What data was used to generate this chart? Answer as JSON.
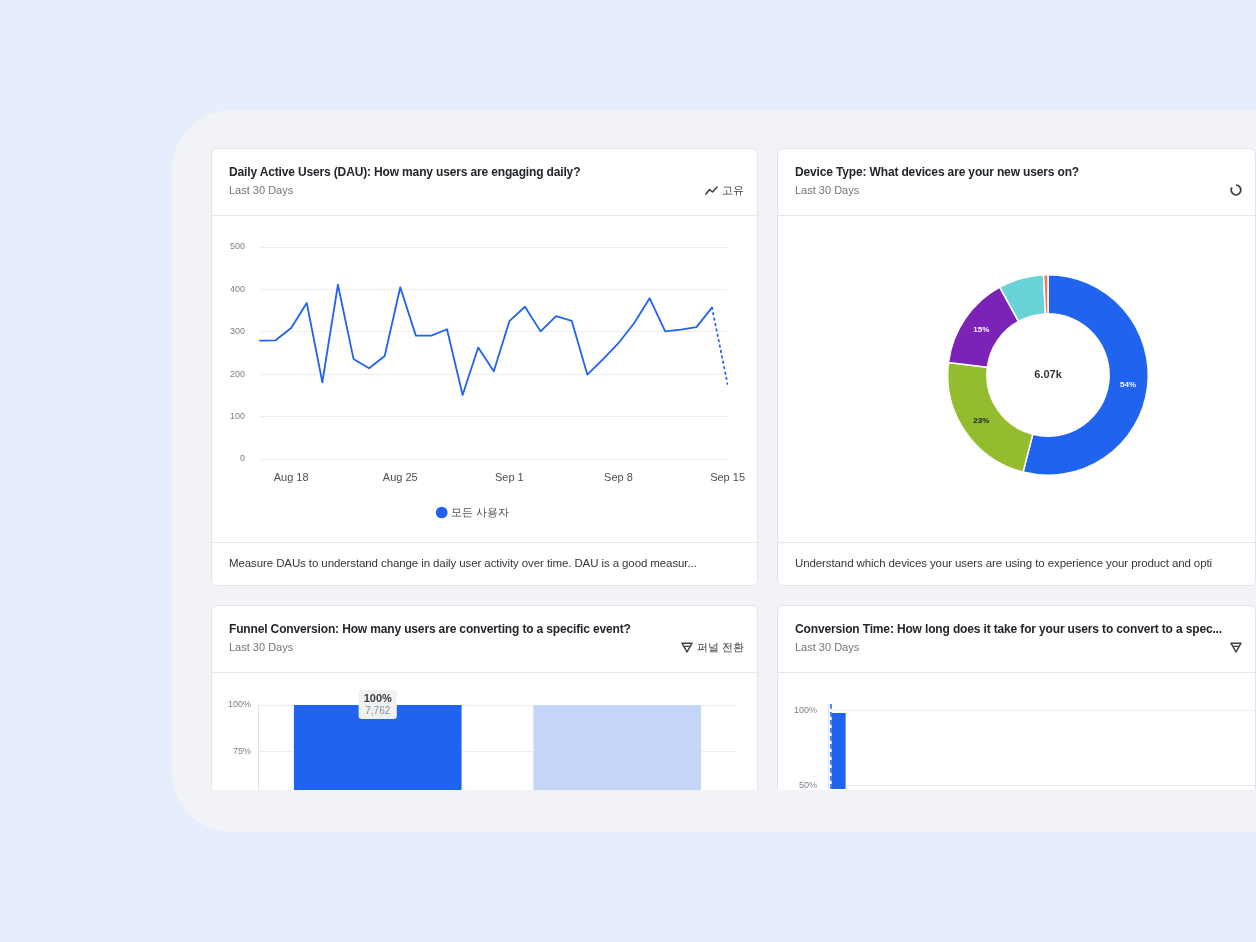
{
  "chart_data": [
    {
      "type": "line",
      "title": "Daily Active Users (DAU): How many users are engaging daily?",
      "subtitle": "Last 30 Days",
      "categories": [
        null,
        null,
        "Aug 18",
        null,
        null,
        null,
        null,
        null,
        null,
        "Aug 25",
        null,
        null,
        null,
        null,
        null,
        null,
        "Sep 1",
        null,
        null,
        null,
        null,
        null,
        null,
        "Sep 8",
        null,
        null,
        null,
        null,
        null,
        null,
        "Sep 15"
      ],
      "series": [
        {
          "name": "모든 사용자",
          "color": "#1f63ee",
          "values": [
            279,
            280,
            309,
            368,
            181,
            411,
            236,
            214,
            243,
            405,
            291,
            291,
            306,
            151,
            263,
            207,
            325,
            359,
            301,
            337,
            326,
            199,
            235,
            273,
            320,
            379,
            301,
            305,
            311,
            357,
            null
          ]
        },
        {
          "color": "#1f63ee",
          "line_style": "dotted",
          "values": [
            null,
            null,
            null,
            null,
            null,
            null,
            null,
            null,
            null,
            null,
            null,
            null,
            null,
            null,
            null,
            null,
            null,
            null,
            null,
            null,
            null,
            null,
            null,
            null,
            null,
            null,
            null,
            null,
            null,
            357,
            177
          ]
        }
      ],
      "ylim": [
        0,
        500
      ],
      "yticks": [
        0,
        100,
        200,
        300,
        400,
        500
      ],
      "grid": "y",
      "legend": "bottom",
      "marker": "none",
      "annotations": [
        "고유",
        "Measure DAUs to understand change in daily user activity over time. DAU is a good measur..."
      ]
    },
    {
      "type": "donut",
      "title": "Device Type: What devices are your new users on?",
      "subtitle": "Last 30 Days",
      "categories": [
        null,
        null,
        null,
        null,
        null
      ],
      "values": [
        54,
        23,
        15,
        7.3,
        0.7
      ],
      "colors": [
        "#1f63ee",
        "#93bd2f",
        "#7b23b6",
        "#68d3d8",
        "#f07a6a"
      ],
      "value_labels": [
        "54%",
        "23%",
        "15%",
        null,
        null
      ],
      "annotations": [
        "6.07k",
        "Understand which devices your users are using to experience your product and opti"
      ]
    },
    {
      "type": "bar",
      "title": "Funnel Conversion: How many users are converting to a specific event?",
      "subtitle": "Last 30 Days",
      "categories": [
        null,
        null
      ],
      "values": [
        100,
        100
      ],
      "colors": [
        "#1f63ee",
        "#c4d5f8"
      ],
      "ylim": [
        54,
        100
      ],
      "yticks": [
        {
          "value": 100,
          "label": "100%"
        },
        {
          "value": 75,
          "label": "75%"
        }
      ],
      "grid": "y",
      "value_labels": [
        "100%\n7,762",
        null
      ],
      "annotations": [
        "퍼널 전환"
      ]
    },
    {
      "type": "bar",
      "title": "Conversion Time: How long does it take for your users to convert to a spec...",
      "subtitle": "Last 30 Days",
      "categories": [
        null,
        null,
        null,
        null,
        null,
        null,
        null,
        null,
        null,
        null,
        null,
        null,
        null,
        null,
        null,
        null,
        null,
        null,
        null,
        null
      ],
      "values": [
        98,
        null,
        null,
        null,
        null,
        null,
        null,
        null,
        null,
        null,
        null,
        null,
        null,
        null,
        null,
        null,
        null,
        null,
        null,
        null
      ],
      "color": "#1f63ee",
      "ylim": [
        48,
        104
      ],
      "yticks": [
        {
          "value": 100,
          "label": "100%"
        },
        {
          "value": 50,
          "label": "50%"
        }
      ],
      "grid": "y"
    }
  ]
}
